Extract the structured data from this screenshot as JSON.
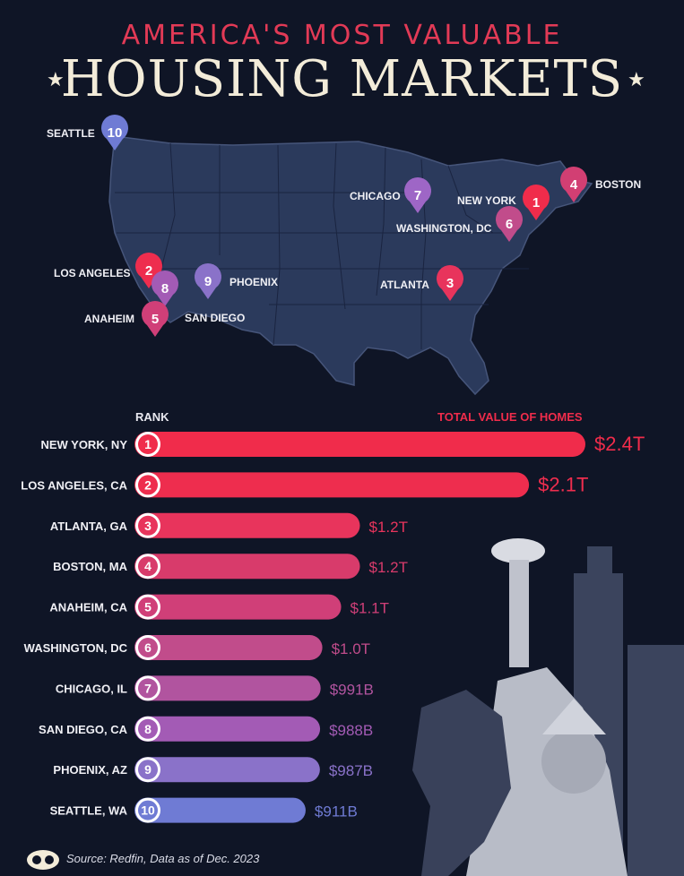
{
  "header": {
    "title_top": "AMERICA'S MOST VALUABLE",
    "title_main": "HOUSING MARKETS"
  },
  "footer": {
    "source": "Source: Redfin, Data as of Dec. 2023"
  },
  "map_labels": [
    {
      "rank": "10",
      "label": "SEATTLE",
      "color": "#6f7bd4"
    },
    {
      "rank": "7",
      "label": "CHICAGO",
      "color": "#9e66c6"
    },
    {
      "rank": "1",
      "label": "NEW YORK",
      "color": "#f02c4b"
    },
    {
      "rank": "4",
      "label": "BOSTON",
      "color": "#d23f73"
    },
    {
      "rank": "6",
      "label": "WASHINGTON, DC",
      "color": "#c14c8b"
    },
    {
      "rank": "2",
      "label": "LOS ANGELES",
      "color": "#ee2d4e"
    },
    {
      "rank": "8",
      "label": "",
      "color": "#a35bb5"
    },
    {
      "rank": "9",
      "label": "PHOENIX",
      "color": "#8a72c9"
    },
    {
      "rank": "3",
      "label": "ATLANTA",
      "color": "#e8345c"
    },
    {
      "rank": "5",
      "label": "ANAHEIM",
      "color": "#d03f78"
    },
    {
      "rank": "",
      "label": "SAN DIEGO",
      "color": "#a35bb5"
    }
  ],
  "chart_data": {
    "type": "bar",
    "orientation": "horizontal",
    "rank_header": "RANK",
    "value_header": "TOTAL VALUE OF HOMES",
    "categories": [
      "NEW YORK, NY",
      "LOS ANGELES, CA",
      "ATLANTA, GA",
      "BOSTON, MA",
      "ANAHEIM, CA",
      "WASHINGTON, DC",
      "CHICAGO, IL",
      "SAN DIEGO, CA",
      "PHOENIX, AZ",
      "SEATTLE, WA"
    ],
    "ranks": [
      "1",
      "2",
      "3",
      "4",
      "5",
      "6",
      "7",
      "8",
      "9",
      "10"
    ],
    "values": [
      2.4,
      2.1,
      1.2,
      1.2,
      1.1,
      1.0,
      0.991,
      0.988,
      0.987,
      0.911
    ],
    "value_labels": [
      "$2.4T",
      "$2.1T",
      "$1.2T",
      "$1.2T",
      "$1.1T",
      "$1.0T",
      "$991B",
      "$988B",
      "$987B",
      "$911B"
    ],
    "unit": "trillion USD",
    "colors": [
      "#f02c4b",
      "#ee2d4e",
      "#e8345c",
      "#d83b6b",
      "#d03f78",
      "#c14c8b",
      "#b1549f",
      "#a35bb5",
      "#8a72c9",
      "#6f7bd4"
    ],
    "xlim": [
      0,
      2.4
    ]
  }
}
